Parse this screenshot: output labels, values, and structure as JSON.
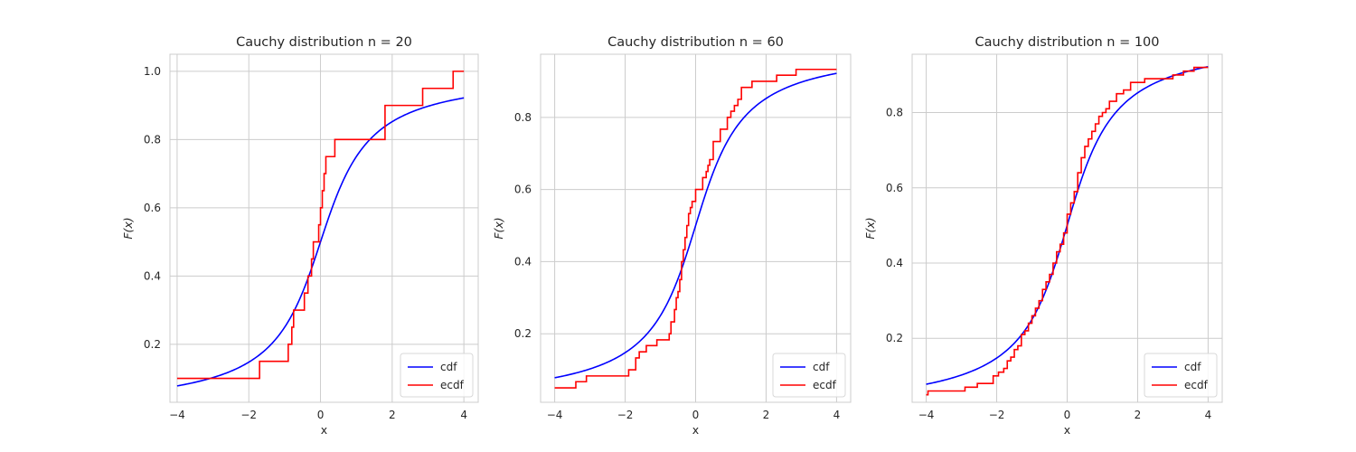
{
  "chart_data": [
    {
      "type": "line",
      "title": "Cauchy distribution n = 20",
      "xlabel": "x",
      "ylabel": "F(x)",
      "xlim": [
        -4.2,
        4.4
      ],
      "ylim": [
        0.03,
        1.05
      ],
      "xticks": [
        -4,
        -2,
        0,
        2,
        4
      ],
      "xtick_labels": [
        "−4",
        "−2",
        "0",
        "2",
        "4"
      ],
      "yticks": [
        0.2,
        0.4,
        0.6,
        0.8,
        1.0
      ],
      "ytick_labels": [
        "0.2",
        "0.4",
        "0.6",
        "0.8",
        "1.0"
      ],
      "grid": true,
      "legend": "lower-right",
      "series": [
        {
          "name": "cdf",
          "color": "#0000ff",
          "kind": "cauchy-cdf",
          "x_range": [
            -4,
            4
          ]
        },
        {
          "name": "ecdf",
          "color": "#ff0000",
          "kind": "step",
          "x": [
            -4,
            -1.7,
            -0.9,
            -0.8,
            -0.75,
            -0.45,
            -0.35,
            -0.25,
            -0.2,
            0.0,
            -0.15,
            -0.05,
            0.0,
            0.05,
            0.1,
            0.15,
            0.4,
            1.8,
            2.85,
            3.7,
            4
          ],
          "y": [
            0.1,
            0.15,
            0.2,
            0.25,
            0.3,
            0.35,
            0.4,
            0.45,
            0.5,
            0.5,
            0.5,
            0.55,
            0.6,
            0.65,
            0.7,
            0.75,
            0.8,
            0.9,
            0.95,
            1.0,
            1.0
          ]
        }
      ]
    },
    {
      "type": "line",
      "title": "Cauchy distribution n = 60",
      "xlabel": "x",
      "ylabel": "F(x)",
      "xlim": [
        -4.4,
        4.4
      ],
      "ylim": [
        0.01,
        0.975
      ],
      "xticks": [
        -4,
        -2,
        0,
        2,
        4
      ],
      "xtick_labels": [
        "−4",
        "−2",
        "0",
        "2",
        "4"
      ],
      "yticks": [
        0.2,
        0.4,
        0.6,
        0.8
      ],
      "ytick_labels": [
        "0.2",
        "0.4",
        "0.6",
        "0.8"
      ],
      "grid": true,
      "legend": "lower-right",
      "series": [
        {
          "name": "cdf",
          "color": "#0000ff",
          "kind": "cauchy-cdf",
          "x_range": [
            -4,
            4
          ]
        },
        {
          "name": "ecdf",
          "color": "#ff0000",
          "kind": "step",
          "x": [
            -4,
            -3.4,
            -3.1,
            -1.9,
            -1.7,
            -1.6,
            -1.4,
            -1.1,
            -0.75,
            -0.7,
            -0.6,
            -0.55,
            -0.5,
            -0.45,
            -0.4,
            -0.35,
            -0.3,
            -0.25,
            -0.2,
            -0.15,
            -0.1,
            -0.05,
            0.0,
            0.2,
            0.3,
            0.35,
            0.4,
            0.5,
            0.7,
            0.9,
            1.0,
            1.1,
            1.2,
            1.3,
            1.6,
            2.3,
            2.85,
            4
          ],
          "y": [
            0.05,
            0.067,
            0.083,
            0.1,
            0.133,
            0.15,
            0.167,
            0.183,
            0.2,
            0.233,
            0.267,
            0.3,
            0.317,
            0.35,
            0.4,
            0.433,
            0.467,
            0.5,
            0.533,
            0.55,
            0.567,
            0.567,
            0.6,
            0.633,
            0.65,
            0.667,
            0.683,
            0.733,
            0.767,
            0.8,
            0.817,
            0.833,
            0.85,
            0.883,
            0.9,
            0.917,
            0.933,
            0.933
          ]
        }
      ]
    },
    {
      "type": "line",
      "title": "Cauchy distribution n = 100",
      "xlabel": "x",
      "ylabel": "F(x)",
      "xlim": [
        -4.4,
        4.4
      ],
      "ylim": [
        0.03,
        0.955
      ],
      "xticks": [
        -4,
        -2,
        0,
        2,
        4
      ],
      "xtick_labels": [
        "−4",
        "−2",
        "0",
        "2",
        "4"
      ],
      "yticks": [
        0.2,
        0.4,
        0.6,
        0.8
      ],
      "ytick_labels": [
        "0.2",
        "0.4",
        "0.6",
        "0.8"
      ],
      "grid": true,
      "legend": "lower-right",
      "series": [
        {
          "name": "cdf",
          "color": "#0000ff",
          "kind": "cauchy-cdf",
          "x_range": [
            -4,
            4
          ]
        },
        {
          "name": "ecdf",
          "color": "#ff0000",
          "kind": "step",
          "x": [
            -4,
            -3.95,
            -2.9,
            -2.55,
            -2.1,
            -1.95,
            -1.8,
            -1.7,
            -1.6,
            -1.5,
            -1.4,
            -1.3,
            -1.2,
            -1.1,
            -1.0,
            -0.9,
            -0.8,
            -0.7,
            -0.6,
            -0.5,
            -0.4,
            -0.3,
            -0.2,
            -0.1,
            0.0,
            0.1,
            0.2,
            0.3,
            0.4,
            0.5,
            0.6,
            0.7,
            0.8,
            0.9,
            1.0,
            1.1,
            1.2,
            1.4,
            1.6,
            1.8,
            2.0,
            2.2,
            2.8,
            3.0,
            3.3,
            3.6,
            3.8,
            4
          ],
          "y": [
            0.05,
            0.06,
            0.07,
            0.08,
            0.1,
            0.11,
            0.12,
            0.14,
            0.15,
            0.17,
            0.18,
            0.21,
            0.22,
            0.24,
            0.26,
            0.28,
            0.3,
            0.33,
            0.35,
            0.37,
            0.4,
            0.43,
            0.45,
            0.48,
            0.53,
            0.56,
            0.59,
            0.64,
            0.68,
            0.71,
            0.73,
            0.75,
            0.77,
            0.79,
            0.8,
            0.81,
            0.83,
            0.85,
            0.86,
            0.88,
            0.88,
            0.89,
            0.89,
            0.9,
            0.91,
            0.92,
            0.92,
            0.92
          ]
        }
      ]
    }
  ]
}
